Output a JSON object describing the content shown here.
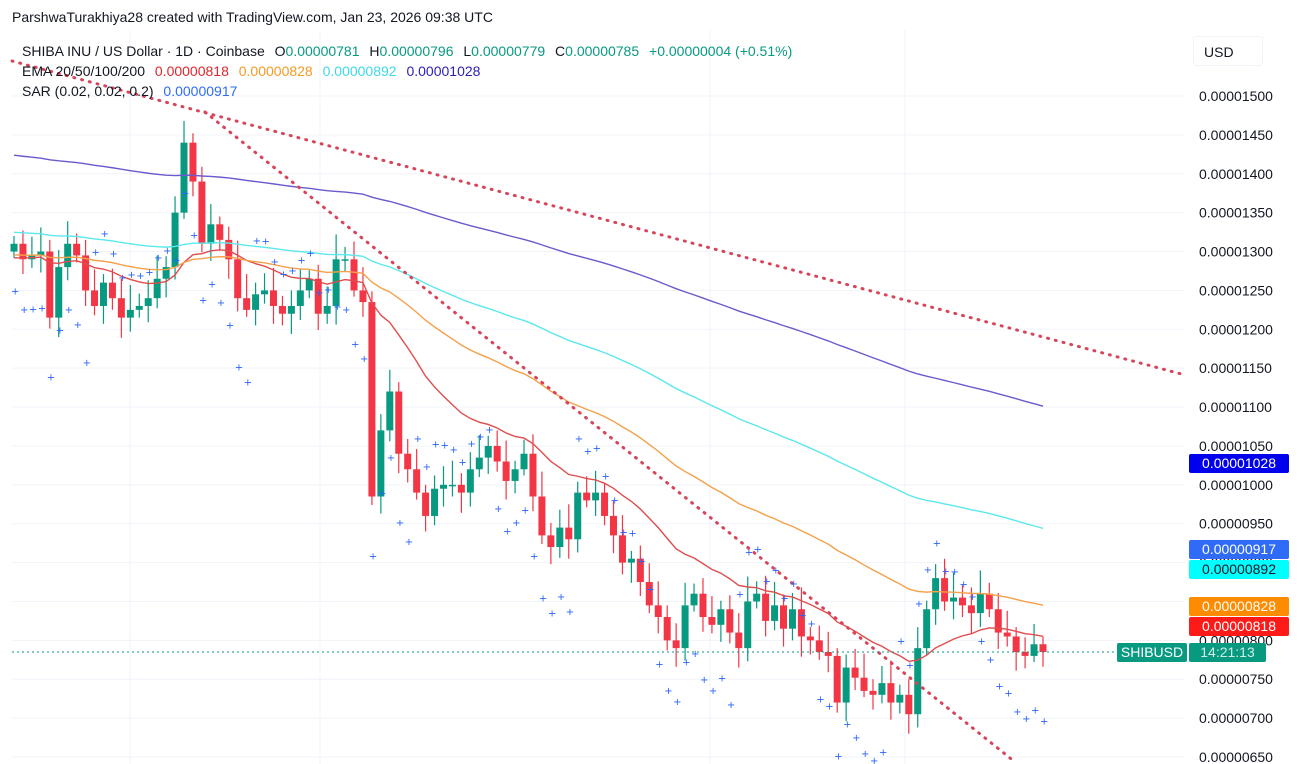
{
  "credit": "ParshwaTurakhiya28 created with TradingView.com, Jan 23, 2026 09:38 UTC",
  "legend": {
    "symbol_line": "SHIBA INU / US Dollar · 1D · Coinbase",
    "ohlc": {
      "o_label": "O",
      "o": "0.00000781",
      "h_label": "H",
      "h": "0.00000796",
      "l_label": "L",
      "l": "0.00000779",
      "c_label": "C",
      "c": "0.00000785",
      "change": "+0.00000004 (+0.51%)"
    },
    "ema_label": "EMA 20/50/100/200",
    "ema_values": [
      "0.00000818",
      "0.00000828",
      "0.00000892",
      "0.00001028"
    ],
    "sar_label": "SAR (0.02, 0.02, 0.2)",
    "sar_value": "0.00000917"
  },
  "axis": {
    "currency": "USD",
    "ticks": [
      "0.00001500",
      "0.00001450",
      "0.00001400",
      "0.00001350",
      "0.00001300",
      "0.00001250",
      "0.00001200",
      "0.00001150",
      "0.00001100",
      "0.00001050",
      "0.00001000",
      "0.00000950",
      "0.00000900",
      "0.00000850",
      "0.00000800",
      "0.00000750",
      "0.00000700",
      "0.00000650"
    ]
  },
  "price_tags": {
    "ema200": "0.00001028",
    "sar": "0.00000917",
    "ema100": "0.00000892",
    "ema50": "0.00000828",
    "ema20": "0.00000818",
    "symbol": "SHIBUSD",
    "countdown": "14:21:13"
  },
  "colors": {
    "up": "#089981",
    "down": "#f23645",
    "ema20": "#e04d4d",
    "ema50": "#f5a04a",
    "ema100": "#5ce8ec",
    "ema200": "#6a5acd",
    "sar": "#2962ff",
    "trend": "#d6455a",
    "tag_ema200": "#0000ee",
    "tag_sar": "#2f6bf6",
    "tag_ema100": "#00ffff",
    "tag_ema50": "#ff8c00",
    "tag_ema20": "#ff1a1a"
  },
  "chart_data": {
    "type": "candlestick",
    "title": "SHIBA INU / US Dollar · 1D · Coinbase",
    "xlabel": "",
    "ylabel": "USD",
    "ylim": [
      6.4e-06,
      1.55e-05
    ],
    "grid": true,
    "legend_position": "top-left",
    "last_price": 7.85e-06,
    "indicators": {
      "EMA20": 8.18e-06,
      "EMA50": 8.28e-06,
      "EMA100": 8.92e-06,
      "EMA200": 1.028e-05,
      "SAR": 9.17e-06
    },
    "candles_approx_close": [
      1310,
      1290,
      1295,
      1300,
      1215,
      1280,
      1310,
      1295,
      1250,
      1230,
      1260,
      1240,
      1215,
      1225,
      1230,
      1240,
      1265,
      1280,
      1350,
      1440,
      1390,
      1310,
      1335,
      1315,
      1290,
      1240,
      1225,
      1245,
      1250,
      1230,
      1220,
      1230,
      1250,
      1265,
      1220,
      1230,
      1290,
      1290,
      1250,
      1235,
      985,
      1070,
      1120,
      1040,
      1020,
      990,
      960,
      995,
      1000,
      1000,
      990,
      1020,
      1035,
      1050,
      1030,
      1005,
      1020,
      1040,
      985,
      935,
      920,
      945,
      930,
      990,
      980,
      990,
      960,
      935,
      900,
      905,
      875,
      845,
      830,
      800,
      790,
      845,
      860,
      830,
      820,
      840,
      810,
      790,
      850,
      860,
      825,
      845,
      815,
      840,
      805,
      800,
      785,
      780,
      720,
      765,
      752,
      735,
      730,
      745,
      720,
      730,
      705,
      790,
      840,
      880,
      850,
      855,
      845,
      835,
      860,
      840,
      810,
      805,
      785,
      780,
      795,
      785
    ],
    "note": "values in units of 1e-8 USD; ~116 daily candles read from chart"
  }
}
